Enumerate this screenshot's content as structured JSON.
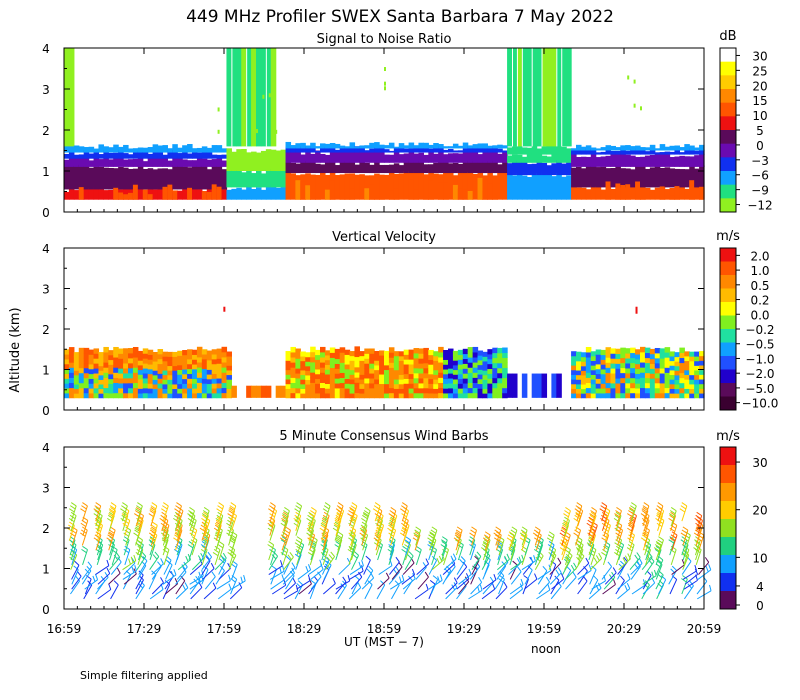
{
  "title": "449 MHz Profiler SWEX Santa Barbara  7 May 2022",
  "y_axis_label": "Altitude (km)",
  "x_axis_label": "UT  (MST − 7)",
  "noon_label": "noon",
  "footnote": "Simple filtering applied",
  "x_ticks": [
    "16:59",
    "17:29",
    "17:59",
    "18:29",
    "18:59",
    "19:29",
    "19:59",
    "20:29",
    "20:59"
  ],
  "y_ticks": [
    "0",
    "1",
    "2",
    "3",
    "4"
  ],
  "chart_data": [
    {
      "type": "heatmap",
      "title": "Signal to Noise Ratio",
      "xlabel": "UT (MST - 7)",
      "ylabel": "Altitude (km)",
      "xlim": [
        "16:59",
        "20:59"
      ],
      "ylim": [
        0,
        4
      ],
      "colorbar": {
        "unit": "dB",
        "tick_labels": [
          "30",
          "25",
          "20",
          "15",
          "10",
          "5",
          "0",
          "−3",
          "−6",
          "−9",
          "−12"
        ],
        "colors": [
          "#ffffff",
          "#ffff00",
          "#ffcc00",
          "#ff8800",
          "#ff5500",
          "#ee1111",
          "#5a0a5a",
          "#6a0ab0",
          "#1030f0",
          "#10a0ff",
          "#20e080",
          "#90f020"
        ]
      }
    },
    {
      "type": "heatmap",
      "title": "Vertical Velocity",
      "xlabel": "UT (MST - 7)",
      "ylabel": "Altitude (km)",
      "xlim": [
        "16:59",
        "20:59"
      ],
      "ylim": [
        0,
        4
      ],
      "colorbar": {
        "unit": "m/s",
        "tick_labels": [
          "2.0",
          "1.0",
          "0.5",
          "0.2",
          "0.0",
          "−0.2",
          "−0.5",
          "−1.0",
          "−2.0",
          "−5.0",
          "−10.0"
        ],
        "colors": [
          "#ee1111",
          "#ff5500",
          "#ff8800",
          "#ffbb00",
          "#ffff00",
          "#80f020",
          "#20e0a0",
          "#10a0ff",
          "#2050ff",
          "#2000cc",
          "#5a0a5a",
          "#3a0030"
        ]
      }
    },
    {
      "type": "wind_barbs",
      "title": "5 Minute Consensus Wind Barbs",
      "xlabel": "UT (MST - 7)",
      "ylabel": "Altitude (km)",
      "xlim": [
        "16:59",
        "20:59"
      ],
      "ylim": [
        0,
        4
      ],
      "colorbar": {
        "unit": "m/s",
        "tick_labels": [
          "30",
          "20",
          "10",
          "4",
          "0"
        ],
        "colors": [
          "#ee1111",
          "#ff5500",
          "#ff9900",
          "#ffcc00",
          "#90e020",
          "#20d080",
          "#10a0ff",
          "#1030f0",
          "#5a0a5a"
        ]
      }
    }
  ]
}
